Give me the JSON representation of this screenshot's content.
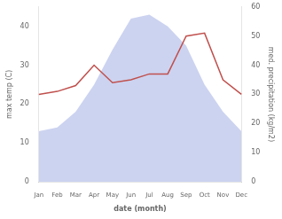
{
  "chart_data": {
    "type": "line",
    "categories": [
      "Jan",
      "Feb",
      "Mar",
      "Apr",
      "May",
      "Jun",
      "Jul",
      "Aug",
      "Sep",
      "Oct",
      "Nov",
      "Dec"
    ],
    "series": [
      {
        "type": "area",
        "color": "#b0bce8",
        "values": [
          13,
          14,
          18,
          25,
          34,
          42,
          43,
          40,
          35,
          25,
          18,
          13
        ]
      },
      {
        "type": "line",
        "color": "#c0504d",
        "axis": "y2",
        "values": [
          30,
          31,
          33,
          40,
          34,
          35,
          37,
          37,
          50,
          51,
          35,
          30
        ]
      }
    ],
    "xlabel": "date (month)",
    "ylabel": "max temp (C)",
    "y2label": "med. precipitation (kg/m2)",
    "ylim": [
      0,
      45
    ],
    "yticks": [
      0,
      10,
      20,
      30,
      40
    ],
    "y2lim": [
      0,
      60
    ],
    "y2ticks": [
      0,
      10,
      20,
      30,
      40,
      50,
      60
    ],
    "grid": false
  }
}
